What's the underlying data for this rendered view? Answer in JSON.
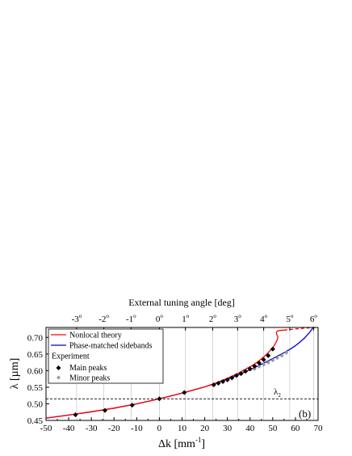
{
  "chart_data": {
    "type": "line",
    "panel_label": "(b)",
    "xlabel_main": "Δk [mm",
    "xlabel_sup": "-1",
    "xlabel_end": "]",
    "ylabel": "λ [µm]",
    "top_axis_label": "External tuning angle [deg]",
    "xlim": [
      -50,
      70
    ],
    "ylim": [
      0.45,
      0.73
    ],
    "x_ticks": [
      -50,
      -40,
      -30,
      -20,
      -10,
      0,
      10,
      20,
      30,
      40,
      50,
      60,
      70
    ],
    "x_tick_labels": [
      "-50",
      "-40",
      "-30",
      "-20",
      "-10",
      "0",
      "10",
      "20",
      "30",
      "40",
      "50",
      "60",
      "70"
    ],
    "y_ticks": [
      0.45,
      0.5,
      0.55,
      0.6,
      0.65,
      0.7
    ],
    "y_tick_labels": [
      "0.45",
      "0.50",
      "0.55",
      "0.60",
      "0.65",
      "0.70"
    ],
    "top_ticks": [
      {
        "label": "-3",
        "x": -36.5
      },
      {
        "label": "-2",
        "x": -24.5
      },
      {
        "label": "-1",
        "x": -12.5
      },
      {
        "label": "0",
        "x": 0
      },
      {
        "label": "1",
        "x": 11.5
      },
      {
        "label": "2",
        "x": 23.5
      },
      {
        "label": "3",
        "x": 34.5
      },
      {
        "label": "4",
        "x": 46
      },
      {
        "label": "5",
        "x": 57.5
      },
      {
        "label": "6",
        "x": 68
      }
    ],
    "degree_symbol": "o",
    "lambda2_label": "λ",
    "lambda2_sub": "2",
    "lambda2_value": 0.515,
    "legend": {
      "placement": "top-left",
      "nonlocal": "Nonlocal theory",
      "phase_matched": "Phase-matched sidebands",
      "experiment_header": "Experiment",
      "main_peaks": "Main peaks",
      "minor_peaks": "Minor peaks"
    },
    "colors": {
      "nonlocal": "#ff0000",
      "phase_matched": "#0000cc",
      "main_peaks": "#000000",
      "minor_peaks": "#999999",
      "grid": "#cccccc"
    },
    "series": [
      {
        "name": "Phase-matched sidebands",
        "x": [
          -50,
          -40,
          -30,
          -20,
          -10,
          0,
          10,
          20,
          25,
          30,
          35,
          40,
          45,
          50,
          55,
          58,
          60,
          62,
          64,
          66,
          67,
          68
        ],
        "y": [
          0.457,
          0.466,
          0.476,
          0.487,
          0.5,
          0.515,
          0.532,
          0.551,
          0.562,
          0.574,
          0.588,
          0.603,
          0.619,
          0.636,
          0.654,
          0.666,
          0.675,
          0.686,
          0.698,
          0.713,
          0.722,
          0.732
        ]
      },
      {
        "name": "Nonlocal theory",
        "x": [
          -50,
          -40,
          -30,
          -20,
          -10,
          0,
          10,
          20,
          25,
          30,
          35,
          40,
          42,
          44,
          46,
          48,
          50,
          51,
          51.8,
          52.3
        ],
        "y": [
          0.457,
          0.466,
          0.476,
          0.487,
          0.5,
          0.515,
          0.532,
          0.551,
          0.563,
          0.577,
          0.593,
          0.612,
          0.62,
          0.63,
          0.641,
          0.654,
          0.669,
          0.679,
          0.69,
          0.7
        ]
      },
      {
        "name": "Nonlocal theory (upper branch)",
        "x": [
          52.3,
          51.8,
          51.6,
          52,
          53,
          55
        ],
        "y": [
          0.7,
          0.708,
          0.714,
          0.719,
          0.721,
          0.722
        ]
      },
      {
        "name": "Nonlocal theory (dashed)",
        "x": [
          55,
          58,
          61,
          64,
          67,
          70
        ],
        "y": [
          0.722,
          0.724,
          0.726,
          0.728,
          0.729,
          0.73
        ]
      },
      {
        "name": "Main peaks",
        "x": [
          -37,
          -24,
          -12,
          0,
          11,
          24,
          26,
          28,
          30,
          32,
          34,
          36,
          38,
          40,
          42,
          44,
          46,
          48,
          50
        ],
        "y": [
          0.467,
          0.48,
          0.496,
          0.515,
          0.534,
          0.557,
          0.562,
          0.567,
          0.572,
          0.578,
          0.585,
          0.591,
          0.598,
          0.605,
          0.613,
          0.623,
          0.633,
          0.645,
          0.665
        ]
      },
      {
        "name": "Minor peaks",
        "x": [
          42,
          44,
          46,
          48,
          50,
          52,
          54,
          56
        ],
        "y": [
          0.605,
          0.612,
          0.618,
          0.624,
          0.631,
          0.638,
          0.645,
          0.654
        ]
      }
    ]
  }
}
